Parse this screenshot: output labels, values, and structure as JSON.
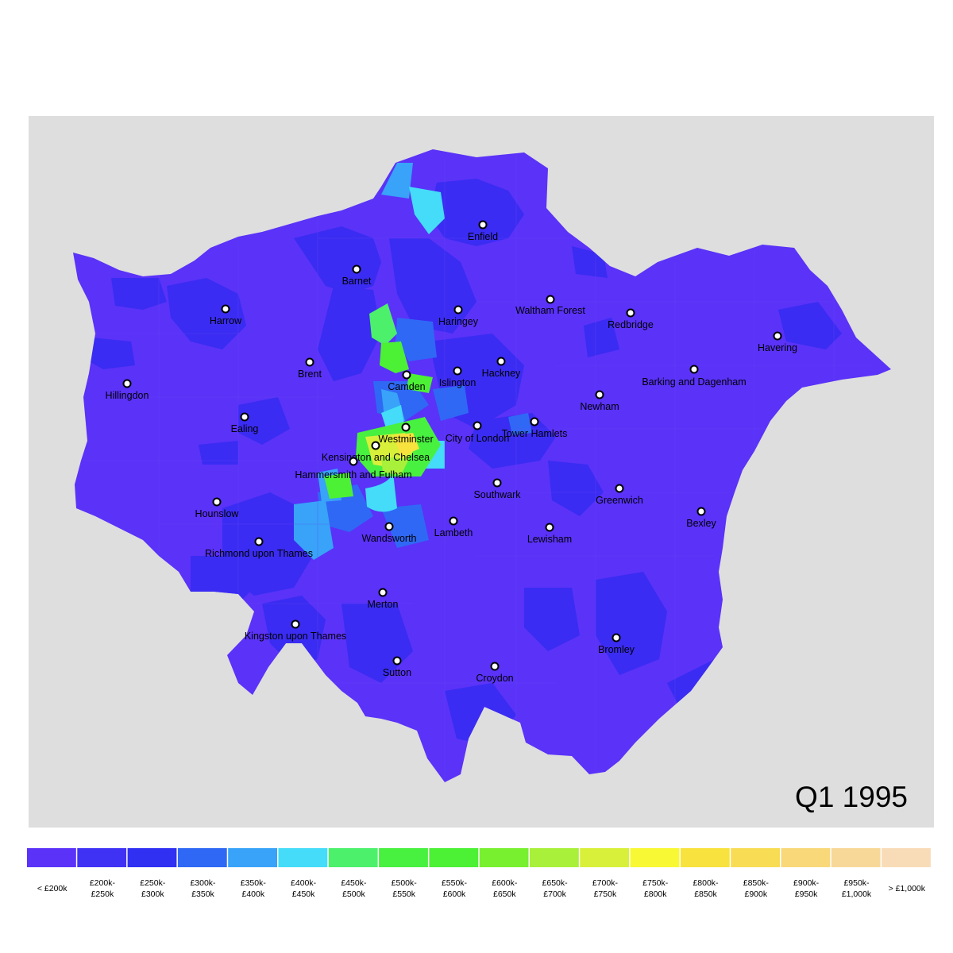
{
  "period": "Q1 1995",
  "colors": {
    "background": "#dedede",
    "base_region": "#5a32f8",
    "darker_region": "#3a2cf2"
  },
  "boroughs": [
    {
      "name": "Enfield",
      "marker": "circle"
    },
    {
      "name": "Barnet",
      "marker": "circle"
    },
    {
      "name": "Harrow",
      "marker": "circle"
    },
    {
      "name": "Haringey",
      "marker": "circle"
    },
    {
      "name": "Waltham Forest",
      "marker": "circle"
    },
    {
      "name": "Redbridge",
      "marker": "circle"
    },
    {
      "name": "Havering",
      "marker": "circle"
    },
    {
      "name": "Brent",
      "marker": "circle"
    },
    {
      "name": "Camden",
      "marker": "circle"
    },
    {
      "name": "Islington",
      "marker": "circle"
    },
    {
      "name": "Hackney",
      "marker": "circle"
    },
    {
      "name": "Barking and Dagenham",
      "marker": "circle"
    },
    {
      "name": "Hillingdon",
      "marker": "circle"
    },
    {
      "name": "Newham",
      "marker": "circle"
    },
    {
      "name": "Ealing",
      "marker": "circle"
    },
    {
      "name": "Westminster",
      "marker": "circle"
    },
    {
      "name": "City of London",
      "marker": "circle"
    },
    {
      "name": "Tower Hamlets",
      "marker": "circle"
    },
    {
      "name": "Kensington and Chelsea",
      "marker": "circle"
    },
    {
      "name": "Hammersmith and Fulham",
      "marker": "circle"
    },
    {
      "name": "Southwark",
      "marker": "circle"
    },
    {
      "name": "Greenwich",
      "marker": "circle"
    },
    {
      "name": "Hounslow",
      "marker": "circle"
    },
    {
      "name": "Bexley",
      "marker": "circle"
    },
    {
      "name": "Wandsworth",
      "marker": "circle"
    },
    {
      "name": "Lambeth",
      "marker": "circle"
    },
    {
      "name": "Lewisham",
      "marker": "circle"
    },
    {
      "name": "Richmond upon Thames",
      "marker": "circle"
    },
    {
      "name": "Merton",
      "marker": "circle"
    },
    {
      "name": "Kingston upon Thames",
      "marker": "circle"
    },
    {
      "name": "Bromley",
      "marker": "circle"
    },
    {
      "name": "Sutton",
      "marker": "circle"
    },
    {
      "name": "Croydon",
      "marker": "circle"
    }
  ],
  "legend": [
    {
      "line1": "< £200k",
      "line2": "",
      "color": "#5a32f8"
    },
    {
      "line1": "£200k-",
      "line2": "£250k",
      "color": "#4032f5"
    },
    {
      "line1": "£250k-",
      "line2": "£300k",
      "color": "#3030f2"
    },
    {
      "line1": "£300k-",
      "line2": "£350k",
      "color": "#2f68f5"
    },
    {
      "line1": "£350k-",
      "line2": "£400k",
      "color": "#38a3f8"
    },
    {
      "line1": "£400k-",
      "line2": "£450k",
      "color": "#44dcf8"
    },
    {
      "line1": "£450k-",
      "line2": "£500k",
      "color": "#4cf06a"
    },
    {
      "line1": "£500k-",
      "line2": "£550k",
      "color": "#48f040"
    },
    {
      "line1": "£550k-",
      "line2": "£600k",
      "color": "#4cf034"
    },
    {
      "line1": "£600k-",
      "line2": "£650k",
      "color": "#78f030"
    },
    {
      "line1": "£650k-",
      "line2": "£700k",
      "color": "#a8f03a"
    },
    {
      "line1": "£700k-",
      "line2": "£750k",
      "color": "#d8f03a"
    },
    {
      "line1": "£750k-",
      "line2": "£800k",
      "color": "#f8f834"
    },
    {
      "line1": "£800k-",
      "line2": "£850k",
      "color": "#f8e23e"
    },
    {
      "line1": "£850k-",
      "line2": "£900k",
      "color": "#f8dc54"
    },
    {
      "line1": "£900k-",
      "line2": "£950k",
      "color": "#f8d878"
    },
    {
      "line1": "£950k-",
      "line2": "£1,000k",
      "color": "#f8d898"
    },
    {
      "line1": "> £1,000k",
      "line2": "",
      "color": "#f8dcb8"
    }
  ]
}
